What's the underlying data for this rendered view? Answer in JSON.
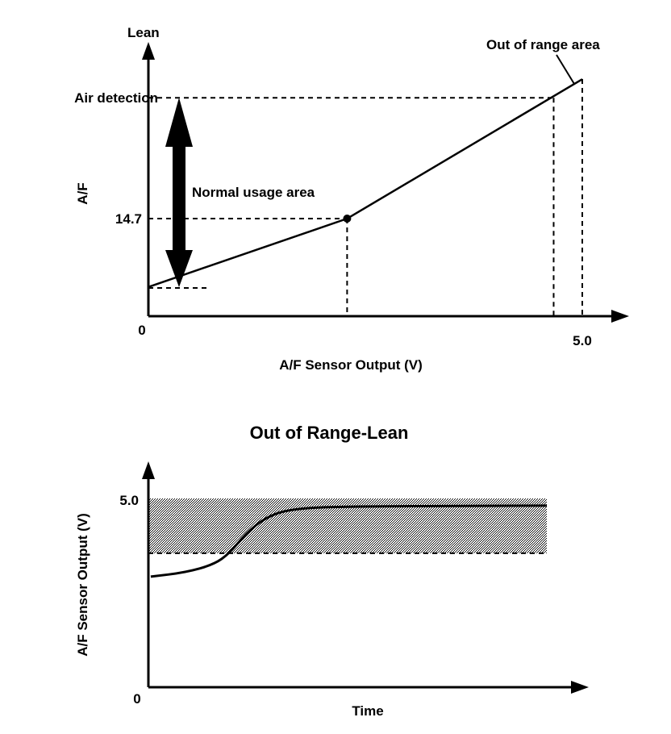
{
  "colors": {
    "ink": "#000000",
    "band": "#9a9a9a"
  },
  "chart_data": [
    {
      "type": "line",
      "title": "",
      "xlabel": "A/F Sensor Output (V)",
      "ylabel": "A/F",
      "y_top_label": "Lean",
      "origin_label": "0",
      "x_tick_label": "5.0",
      "y_tick_labels": {
        "stoich": "14.7",
        "air": "Air detection"
      },
      "xlim": [
        0,
        5.3
      ],
      "ylim": [
        0,
        40
      ],
      "series": [
        {
          "name": "A/F characteristic",
          "x": [
            0,
            2.29,
            5.0
          ],
          "y": [
            4.4,
            14.7,
            35.7
          ]
        }
      ],
      "reference": {
        "stoich_x": 2.29,
        "stoich_y": 14.7,
        "air_y": 32.9,
        "air_x": 4.67,
        "max_x": 5.0,
        "lower_y": 4.25
      },
      "annotations": {
        "normal": "Normal usage area",
        "out": "Out of range area"
      }
    },
    {
      "type": "line",
      "title": "Out of Range-Lean",
      "xlabel": "Time",
      "ylabel": "A/F Sensor Output (V)",
      "origin_label": "0",
      "y_tick_label": "5.0",
      "xlim": [
        0,
        11
      ],
      "ylim": [
        0,
        6
      ],
      "band": [
        3.55,
        5.0
      ],
      "band_x": [
        0,
        10
      ],
      "series": [
        {
          "name": "Sensor output",
          "x": [
            0.06,
            0.93,
            1.64,
            2.04,
            2.45,
            2.96,
            3.56,
            4.78,
            10
          ],
          "y": [
            2.93,
            3.04,
            3.25,
            3.55,
            4.08,
            4.51,
            4.72,
            4.79,
            4.81
          ]
        }
      ]
    }
  ]
}
